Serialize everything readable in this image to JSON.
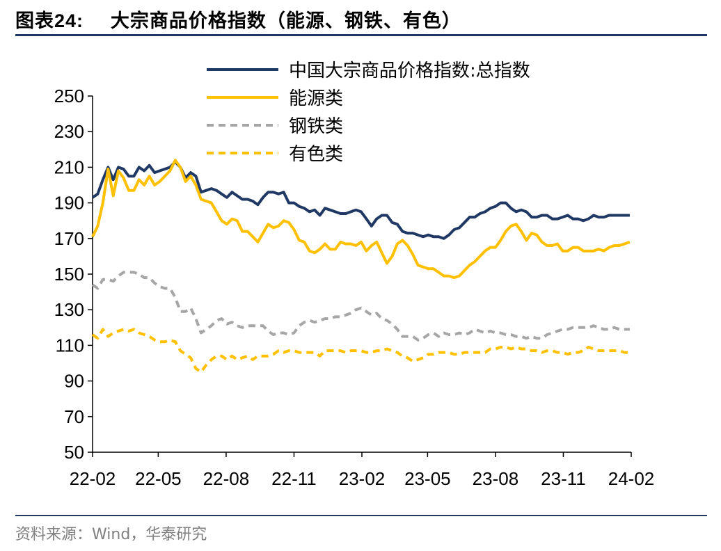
{
  "title": {
    "prefix": "图表",
    "number": "24:",
    "text": "大宗商品价格指数（能源、钢铁、有色）"
  },
  "source": "资料来源：Wind，华泰研究",
  "chart_data": {
    "type": "line",
    "title": "",
    "xlabel": "",
    "ylabel": "",
    "ylim": [
      50,
      250
    ],
    "yticks": [
      50,
      70,
      90,
      110,
      130,
      150,
      170,
      190,
      210,
      230,
      250
    ],
    "xrange": [
      "2022-02-01",
      "2024-02-01"
    ],
    "xticks": [
      "22-02",
      "22-05",
      "22-08",
      "22-11",
      "23-02",
      "23-05",
      "23-08",
      "23-11",
      "24-02"
    ],
    "grid": false,
    "legend_position": "top-center",
    "series": [
      {
        "name": "中国大宗商品价格指数:总指数",
        "color": "#1f3864",
        "style": "solid",
        "x": [
          "2022-02-01",
          "2022-02-08",
          "2022-02-15",
          "2022-02-22",
          "2022-03-01",
          "2022-03-08",
          "2022-03-15",
          "2022-03-22",
          "2022-03-29",
          "2022-04-05",
          "2022-04-12",
          "2022-04-19",
          "2022-04-26",
          "2022-05-03",
          "2022-05-10",
          "2022-05-17",
          "2022-05-24",
          "2022-05-31",
          "2022-06-07",
          "2022-06-14",
          "2022-06-21",
          "2022-06-28",
          "2022-07-05",
          "2022-07-12",
          "2022-07-19",
          "2022-07-26",
          "2022-08-02",
          "2022-08-09",
          "2022-08-16",
          "2022-08-23",
          "2022-08-30",
          "2022-09-06",
          "2022-09-13",
          "2022-09-20",
          "2022-09-27",
          "2022-10-04",
          "2022-10-11",
          "2022-10-18",
          "2022-10-25",
          "2022-11-01",
          "2022-11-08",
          "2022-11-15",
          "2022-11-22",
          "2022-11-29",
          "2022-12-06",
          "2022-12-13",
          "2022-12-20",
          "2022-12-27",
          "2023-01-03",
          "2023-01-10",
          "2023-01-17",
          "2023-01-24",
          "2023-01-31",
          "2023-02-07",
          "2023-02-14",
          "2023-02-21",
          "2023-02-28",
          "2023-03-07",
          "2023-03-14",
          "2023-03-21",
          "2023-03-28",
          "2023-04-04",
          "2023-04-11",
          "2023-04-18",
          "2023-04-25",
          "2023-05-02",
          "2023-05-09",
          "2023-05-16",
          "2023-05-23",
          "2023-05-30",
          "2023-06-06",
          "2023-06-13",
          "2023-06-20",
          "2023-06-27",
          "2023-07-04",
          "2023-07-11",
          "2023-07-18",
          "2023-07-25",
          "2023-08-01",
          "2023-08-08",
          "2023-08-15",
          "2023-08-22",
          "2023-08-29",
          "2023-09-05",
          "2023-09-12",
          "2023-09-19",
          "2023-09-26",
          "2023-10-03",
          "2023-10-10",
          "2023-10-17",
          "2023-10-24",
          "2023-10-31",
          "2023-11-07",
          "2023-11-14",
          "2023-11-21",
          "2023-11-28",
          "2023-12-05",
          "2023-12-12",
          "2023-12-19",
          "2023-12-26",
          "2024-01-02",
          "2024-01-09",
          "2024-01-16",
          "2024-01-23",
          "2024-01-30"
        ],
        "values": [
          193,
          195,
          203,
          210,
          203,
          210,
          209,
          205,
          205,
          210,
          208,
          211,
          207,
          208,
          209,
          210,
          213,
          210,
          204,
          207,
          205,
          196,
          197,
          198,
          197,
          195,
          193,
          196,
          194,
          192,
          192,
          191,
          189,
          193,
          196,
          196,
          195,
          196,
          190,
          190,
          188,
          187,
          185,
          186,
          183,
          187,
          186,
          185,
          184,
          184,
          185,
          186,
          185,
          181,
          177,
          181,
          183,
          183,
          179,
          178,
          174,
          173,
          173,
          172,
          171,
          172,
          171,
          171,
          170,
          172,
          175,
          176,
          179,
          182,
          182,
          184,
          185,
          187,
          188,
          190,
          190,
          187,
          185,
          186,
          185,
          182,
          182,
          183,
          183,
          181,
          181,
          182,
          183,
          181,
          181,
          180,
          181,
          183,
          182,
          182,
          183,
          183,
          183,
          183,
          183
        ]
      },
      {
        "name": "能源类",
        "color": "#ffc000",
        "style": "solid",
        "x": [
          "2022-02-01",
          "2022-02-08",
          "2022-02-15",
          "2022-02-22",
          "2022-03-01",
          "2022-03-08",
          "2022-03-15",
          "2022-03-22",
          "2022-03-29",
          "2022-04-05",
          "2022-04-12",
          "2022-04-19",
          "2022-04-26",
          "2022-05-03",
          "2022-05-10",
          "2022-05-17",
          "2022-05-24",
          "2022-05-31",
          "2022-06-07",
          "2022-06-14",
          "2022-06-21",
          "2022-06-28",
          "2022-07-05",
          "2022-07-12",
          "2022-07-19",
          "2022-07-26",
          "2022-08-02",
          "2022-08-09",
          "2022-08-16",
          "2022-08-23",
          "2022-08-30",
          "2022-09-06",
          "2022-09-13",
          "2022-09-20",
          "2022-09-27",
          "2022-10-04",
          "2022-10-11",
          "2022-10-18",
          "2022-10-25",
          "2022-11-01",
          "2022-11-08",
          "2022-11-15",
          "2022-11-22",
          "2022-11-29",
          "2022-12-06",
          "2022-12-13",
          "2022-12-20",
          "2022-12-27",
          "2023-01-03",
          "2023-01-10",
          "2023-01-17",
          "2023-01-24",
          "2023-01-31",
          "2023-02-07",
          "2023-02-14",
          "2023-02-21",
          "2023-02-28",
          "2023-03-07",
          "2023-03-14",
          "2023-03-21",
          "2023-03-28",
          "2023-04-04",
          "2023-04-11",
          "2023-04-18",
          "2023-04-25",
          "2023-05-02",
          "2023-05-09",
          "2023-05-16",
          "2023-05-23",
          "2023-05-30",
          "2023-06-06",
          "2023-06-13",
          "2023-06-20",
          "2023-06-27",
          "2023-07-04",
          "2023-07-11",
          "2023-07-18",
          "2023-07-25",
          "2023-08-01",
          "2023-08-08",
          "2023-08-15",
          "2023-08-22",
          "2023-08-29",
          "2023-09-05",
          "2023-09-12",
          "2023-09-19",
          "2023-09-26",
          "2023-10-03",
          "2023-10-10",
          "2023-10-17",
          "2023-10-24",
          "2023-10-31",
          "2023-11-07",
          "2023-11-14",
          "2023-11-21",
          "2023-11-28",
          "2023-12-05",
          "2023-12-12",
          "2023-12-19",
          "2023-12-26",
          "2024-01-02",
          "2024-01-09",
          "2024-01-16",
          "2024-01-23",
          "2024-01-30"
        ],
        "values": [
          171,
          177,
          190,
          209,
          194,
          208,
          204,
          197,
          197,
          203,
          200,
          205,
          200,
          202,
          205,
          208,
          214,
          210,
          202,
          205,
          200,
          192,
          191,
          190,
          185,
          180,
          178,
          181,
          180,
          174,
          174,
          171,
          168,
          173,
          178,
          176,
          177,
          180,
          179,
          175,
          169,
          168,
          163,
          162,
          164,
          167,
          164,
          164,
          168,
          167,
          167,
          166,
          168,
          163,
          166,
          168,
          162,
          156,
          160,
          167,
          169,
          166,
          161,
          155,
          154,
          153,
          153,
          151,
          149,
          149,
          148,
          149,
          152,
          155,
          157,
          160,
          163,
          165,
          165,
          169,
          174,
          177,
          178,
          174,
          169,
          173,
          172,
          168,
          166,
          166,
          167,
          163,
          163,
          165,
          165,
          163,
          163,
          163,
          164,
          163,
          165,
          166,
          166,
          167,
          168
        ]
      },
      {
        "name": "钢铁类",
        "color": "#a6a6a6",
        "style": "dashed",
        "x": [
          "2022-02-01",
          "2022-02-08",
          "2022-02-15",
          "2022-02-22",
          "2022-03-01",
          "2022-03-08",
          "2022-03-15",
          "2022-03-22",
          "2022-03-29",
          "2022-04-05",
          "2022-04-12",
          "2022-04-19",
          "2022-04-26",
          "2022-05-03",
          "2022-05-10",
          "2022-05-17",
          "2022-05-24",
          "2022-05-31",
          "2022-06-07",
          "2022-06-14",
          "2022-06-21",
          "2022-06-28",
          "2022-07-05",
          "2022-07-12",
          "2022-07-19",
          "2022-07-26",
          "2022-08-02",
          "2022-08-09",
          "2022-08-16",
          "2022-08-23",
          "2022-08-30",
          "2022-09-06",
          "2022-09-13",
          "2022-09-20",
          "2022-09-27",
          "2022-10-04",
          "2022-10-11",
          "2022-10-18",
          "2022-10-25",
          "2022-11-01",
          "2022-11-08",
          "2022-11-15",
          "2022-11-22",
          "2022-11-29",
          "2022-12-06",
          "2022-12-13",
          "2022-12-20",
          "2022-12-27",
          "2023-01-03",
          "2023-01-10",
          "2023-01-17",
          "2023-01-24",
          "2023-01-31",
          "2023-02-07",
          "2023-02-14",
          "2023-02-21",
          "2023-02-28",
          "2023-03-07",
          "2023-03-14",
          "2023-03-21",
          "2023-03-28",
          "2023-04-04",
          "2023-04-11",
          "2023-04-18",
          "2023-04-25",
          "2023-05-02",
          "2023-05-09",
          "2023-05-16",
          "2023-05-23",
          "2023-05-30",
          "2023-06-06",
          "2023-06-13",
          "2023-06-20",
          "2023-06-27",
          "2023-07-04",
          "2023-07-11",
          "2023-07-18",
          "2023-07-25",
          "2023-08-01",
          "2023-08-08",
          "2023-08-15",
          "2023-08-22",
          "2023-08-29",
          "2023-09-05",
          "2023-09-12",
          "2023-09-19",
          "2023-09-26",
          "2023-10-03",
          "2023-10-10",
          "2023-10-17",
          "2023-10-24",
          "2023-10-31",
          "2023-11-07",
          "2023-11-14",
          "2023-11-21",
          "2023-11-28",
          "2023-12-05",
          "2023-12-12",
          "2023-12-19",
          "2023-12-26",
          "2024-01-02",
          "2024-01-09",
          "2024-01-16",
          "2024-01-23",
          "2024-01-30"
        ],
        "values": [
          144,
          142,
          147,
          147,
          146,
          149,
          151,
          151,
          151,
          150,
          148,
          148,
          145,
          143,
          142,
          142,
          137,
          129,
          129,
          131,
          125,
          117,
          119,
          121,
          124,
          125,
          122,
          123,
          121,
          120,
          121,
          121,
          121,
          121,
          118,
          116,
          117,
          117,
          116,
          117,
          121,
          123,
          124,
          123,
          124,
          125,
          125,
          126,
          126,
          127,
          128,
          130,
          131,
          129,
          127,
          128,
          125,
          124,
          122,
          119,
          115,
          115,
          115,
          113,
          114,
          116,
          117,
          115,
          117,
          116,
          116,
          117,
          116,
          117,
          119,
          118,
          117,
          118,
          117,
          117,
          116,
          116,
          115,
          115,
          114,
          115,
          114,
          114,
          116,
          117,
          118,
          119,
          119,
          120,
          120,
          120,
          120,
          121,
          120,
          119,
          119,
          120,
          119,
          119,
          119
        ]
      },
      {
        "name": "有色类",
        "color": "#ffc000",
        "style": "dashed",
        "x": [
          "2022-02-01",
          "2022-02-08",
          "2022-02-15",
          "2022-02-22",
          "2022-03-01",
          "2022-03-08",
          "2022-03-15",
          "2022-03-22",
          "2022-03-29",
          "2022-04-05",
          "2022-04-12",
          "2022-04-19",
          "2022-04-26",
          "2022-05-03",
          "2022-05-10",
          "2022-05-17",
          "2022-05-24",
          "2022-05-31",
          "2022-06-07",
          "2022-06-14",
          "2022-06-21",
          "2022-06-28",
          "2022-07-05",
          "2022-07-12",
          "2022-07-19",
          "2022-07-26",
          "2022-08-02",
          "2022-08-09",
          "2022-08-16",
          "2022-08-23",
          "2022-08-30",
          "2022-09-06",
          "2022-09-13",
          "2022-09-20",
          "2022-09-27",
          "2022-10-04",
          "2022-10-11",
          "2022-10-18",
          "2022-10-25",
          "2022-11-01",
          "2022-11-08",
          "2022-11-15",
          "2022-11-22",
          "2022-11-29",
          "2022-12-06",
          "2022-12-13",
          "2022-12-20",
          "2022-12-27",
          "2023-01-03",
          "2023-01-10",
          "2023-01-17",
          "2023-01-24",
          "2023-01-31",
          "2023-02-07",
          "2023-02-14",
          "2023-02-21",
          "2023-02-28",
          "2023-03-07",
          "2023-03-14",
          "2023-03-21",
          "2023-03-28",
          "2023-04-04",
          "2023-04-11",
          "2023-04-18",
          "2023-04-25",
          "2023-05-02",
          "2023-05-09",
          "2023-05-16",
          "2023-05-23",
          "2023-05-30",
          "2023-06-06",
          "2023-06-13",
          "2023-06-20",
          "2023-06-27",
          "2023-07-04",
          "2023-07-11",
          "2023-07-18",
          "2023-07-25",
          "2023-08-01",
          "2023-08-08",
          "2023-08-15",
          "2023-08-22",
          "2023-08-29",
          "2023-09-05",
          "2023-09-12",
          "2023-09-19",
          "2023-09-26",
          "2023-10-03",
          "2023-10-10",
          "2023-10-17",
          "2023-10-24",
          "2023-10-31",
          "2023-11-07",
          "2023-11-14",
          "2023-11-21",
          "2023-11-28",
          "2023-12-05",
          "2023-12-12",
          "2023-12-19",
          "2023-12-26",
          "2024-01-02",
          "2024-01-09",
          "2024-01-16",
          "2024-01-23",
          "2024-01-30"
        ],
        "values": [
          116,
          114,
          119,
          115,
          117,
          118,
          119,
          118,
          119,
          117,
          116,
          115,
          113,
          112,
          112,
          113,
          112,
          107,
          105,
          103,
          97,
          95,
          99,
          102,
          104,
          104,
          102,
          104,
          102,
          103,
          104,
          102,
          104,
          104,
          104,
          105,
          107,
          106,
          107,
          107,
          106,
          106,
          106,
          106,
          104,
          107,
          107,
          107,
          107,
          106,
          107,
          107,
          107,
          106,
          106,
          107,
          107,
          108,
          107,
          106,
          104,
          103,
          101,
          102,
          103,
          105,
          105,
          106,
          106,
          106,
          105,
          105,
          106,
          106,
          106,
          106,
          106,
          108,
          108,
          109,
          109,
          108,
          109,
          108,
          108,
          107,
          107,
          106,
          107,
          107,
          106,
          106,
          105,
          106,
          106,
          107,
          109,
          108,
          107,
          107,
          107,
          107,
          107,
          106,
          106
        ]
      }
    ]
  }
}
